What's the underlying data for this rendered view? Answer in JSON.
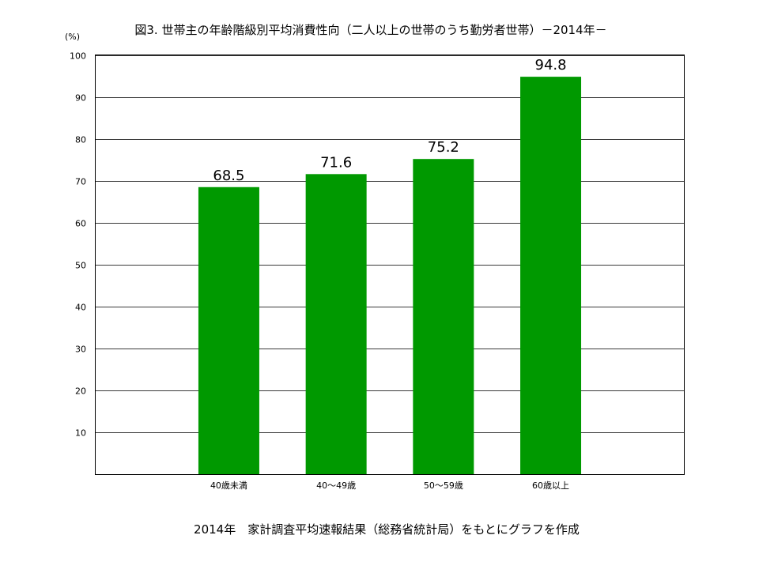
{
  "chart_data": {
    "type": "bar",
    "title": "図3. 世帯主の年齢階級別平均消費性向（二人以上の世帯のうち勤労者世帯）－2014年－",
    "xlabel": "",
    "ylabel": "(%)",
    "categories": [
      "40歳未満",
      "40～49歳",
      "50～59歳",
      "60歳以上"
    ],
    "values": [
      68.5,
      71.6,
      75.2,
      94.8
    ],
    "ylim": [
      0,
      100
    ],
    "yticks": [
      10,
      20,
      30,
      40,
      50,
      60,
      70,
      80,
      90,
      100
    ],
    "grid": true,
    "legend": "none",
    "data_labels": true,
    "bar_color": "#009900"
  },
  "footer": "2014年　家計調査平均速報結果（総務省統計局）をもとにグラフを作成"
}
